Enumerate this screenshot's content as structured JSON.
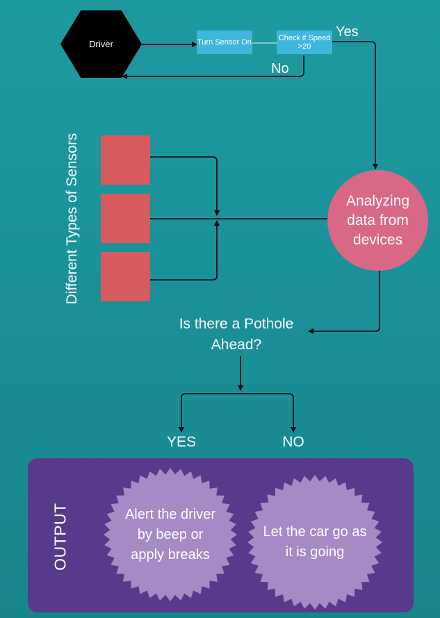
{
  "diagram": {
    "driver": "Driver",
    "turn_sensor_on": "Turn Sensor On",
    "check_speed": "Check if Speed >20",
    "yes_label": "Yes",
    "no_label": "No",
    "sensors_label": "Different Types of Sensors",
    "analyzing": "Analyzing data from devices",
    "pothole_question": "Is there a Pothole Ahead?",
    "branch_yes": "YES",
    "branch_no": "NO",
    "output_label": "OUTPUT",
    "output_yes": "Alert the driver by beep or apply breaks",
    "output_no": "Let the car go as it is going"
  },
  "colors": {
    "background": "#1a9098",
    "process_box": "#3fb6dc",
    "sensor": "#d75b5d",
    "analyze_circle": "#d96886",
    "output_panel": "#573a8b",
    "burst": "#a58ac6"
  }
}
